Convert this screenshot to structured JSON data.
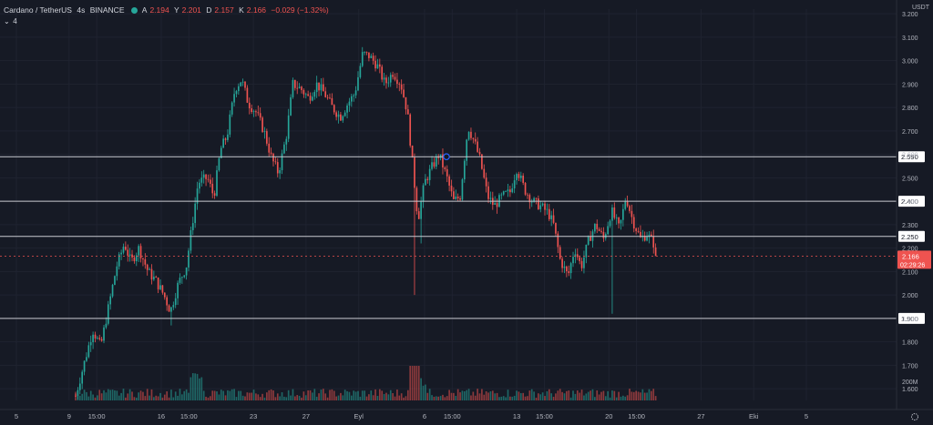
{
  "legend": {
    "symbol": "Cardano / TetherUS",
    "interval": "4s",
    "exchange": "BINANCE",
    "status_color": "#26a69a",
    "open_label": "A",
    "open": "2.194",
    "high_label": "Y",
    "high": "2.201",
    "low_label": "D",
    "low": "2.157",
    "close_label": "K",
    "close": "2.166",
    "change": "−0.029 (−1.32%)",
    "indicator_count": "4"
  },
  "currency": "USDT",
  "colors": {
    "background": "#161a25",
    "up": "#26a69a",
    "down": "#ef5350",
    "hline": "#c8cad0",
    "grid": "#1f2330",
    "axis_text": "#b2b5be"
  },
  "chart_data": {
    "type": "candlestick",
    "symbol": "ADA/USDT",
    "ylim": [
      1.55,
      3.22
    ],
    "y_ticks": [
      "1.600",
      "1.700",
      "1.800",
      "1.900",
      "2.000",
      "2.100",
      "2.200",
      "2.300",
      "2.400",
      "2.500",
      "2.600",
      "2.700",
      "2.800",
      "2.900",
      "3.000",
      "3.100",
      "3.200"
    ],
    "x_ticks": [
      {
        "label": "5",
        "t": 0
      },
      {
        "label": "9",
        "t": 4
      },
      {
        "label": "15:00",
        "t": 6.1
      },
      {
        "label": "16",
        "t": 11
      },
      {
        "label": "15:00",
        "t": 13.1
      },
      {
        "label": "23",
        "t": 18
      },
      {
        "label": "27",
        "t": 22
      },
      {
        "label": "Eyl",
        "t": 26
      },
      {
        "label": "6",
        "t": 31
      },
      {
        "label": "15:00",
        "t": 33.1
      },
      {
        "label": "13",
        "t": 38
      },
      {
        "label": "15:00",
        "t": 40.1
      },
      {
        "label": "20",
        "t": 45
      },
      {
        "label": "15:00",
        "t": 47.1
      },
      {
        "label": "27",
        "t": 52
      },
      {
        "label": "Eki",
        "t": 56
      },
      {
        "label": "5",
        "t": 60
      }
    ],
    "horizontal_lines": [
      {
        "price": "2.590",
        "value": 2.59
      },
      {
        "price": "2.400",
        "value": 2.4
      },
      {
        "price": "2.250",
        "value": 2.25
      },
      {
        "price": "1.900",
        "value": 1.9
      }
    ],
    "last_price": {
      "value": 2.166,
      "label": "2.166",
      "countdown": "02:29:26"
    },
    "volume_label": "200M",
    "path": [
      [
        4.5,
        1.57
      ],
      [
        5.2,
        1.72
      ],
      [
        5.8,
        1.85
      ],
      [
        6.4,
        1.78
      ],
      [
        7,
        1.95
      ],
      [
        7.6,
        2.12
      ],
      [
        8.2,
        2.22
      ],
      [
        8.7,
        2.14
      ],
      [
        9.3,
        2.2
      ],
      [
        10,
        2.1
      ],
      [
        10.6,
        2.06
      ],
      [
        11.2,
        2.0
      ],
      [
        11.7,
        1.93
      ],
      [
        12.3,
        2.05
      ],
      [
        12.9,
        2.12
      ],
      [
        13.3,
        2.28
      ],
      [
        13.8,
        2.48
      ],
      [
        14.5,
        2.5
      ],
      [
        15,
        2.42
      ],
      [
        15.5,
        2.62
      ],
      [
        16,
        2.68
      ],
      [
        16.6,
        2.88
      ],
      [
        17.1,
        2.92
      ],
      [
        17.6,
        2.82
      ],
      [
        18.2,
        2.78
      ],
      [
        18.8,
        2.7
      ],
      [
        19.4,
        2.58
      ],
      [
        19.9,
        2.52
      ],
      [
        20.5,
        2.68
      ],
      [
        21,
        2.9
      ],
      [
        21.6,
        2.88
      ],
      [
        22.2,
        2.84
      ],
      [
        22.8,
        2.9
      ],
      [
        23.4,
        2.86
      ],
      [
        24,
        2.8
      ],
      [
        24.6,
        2.76
      ],
      [
        25.2,
        2.82
      ],
      [
        25.7,
        2.86
      ],
      [
        26.3,
        3.03
      ],
      [
        26.8,
        3.02
      ],
      [
        27.4,
        2.98
      ],
      [
        28,
        2.9
      ],
      [
        28.6,
        2.95
      ],
      [
        29.2,
        2.9
      ],
      [
        29.7,
        2.78
      ],
      [
        30.1,
        2.55
      ],
      [
        30.5,
        2.32
      ],
      [
        31,
        2.48
      ],
      [
        31.6,
        2.55
      ],
      [
        32.1,
        2.6
      ],
      [
        32.7,
        2.5
      ],
      [
        33.2,
        2.4
      ],
      [
        33.7,
        2.42
      ],
      [
        34.3,
        2.72
      ],
      [
        34.8,
        2.65
      ],
      [
        35.2,
        2.58
      ],
      [
        35.8,
        2.42
      ],
      [
        36.3,
        2.38
      ],
      [
        36.9,
        2.42
      ],
      [
        37.5,
        2.44
      ],
      [
        38,
        2.54
      ],
      [
        38.6,
        2.45
      ],
      [
        39.2,
        2.4
      ],
      [
        39.8,
        2.38
      ],
      [
        40.4,
        2.35
      ],
      [
        40.8,
        2.3
      ],
      [
        41.3,
        2.15
      ],
      [
        41.9,
        2.08
      ],
      [
        42.4,
        2.2
      ],
      [
        42.9,
        2.12
      ],
      [
        43.5,
        2.24
      ],
      [
        44,
        2.3
      ],
      [
        44.6,
        2.24
      ],
      [
        45.2,
        2.36
      ],
      [
        45.8,
        2.28
      ],
      [
        46.3,
        2.42
      ],
      [
        46.8,
        2.32
      ],
      [
        47.4,
        2.24
      ],
      [
        47.9,
        2.26
      ],
      [
        48.4,
        2.22
      ],
      [
        48.7,
        2.17
      ]
    ]
  }
}
